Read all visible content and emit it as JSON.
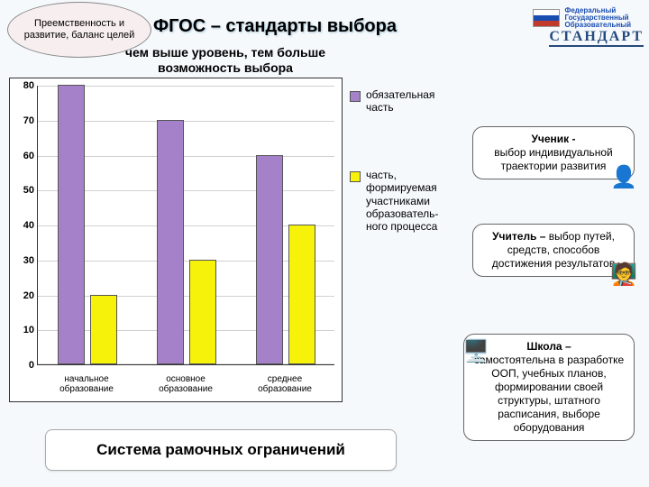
{
  "badge_text": "Преемственность и развитие, баланс целей",
  "title": "ФГОС – стандарты выбора",
  "stand_label": "СТАНДАРТ",
  "logo_text1": "Федеральный",
  "logo_text2": "Государственный",
  "logo_text3": "Образовательный",
  "subtitle": "чем выше уровень, тем больше возможность выбора",
  "chart": {
    "type": "bar",
    "ymin": 0,
    "ymax": 80,
    "yticks": [
      0,
      10,
      20,
      30,
      40,
      50,
      60,
      70,
      80
    ],
    "categories": [
      "начальное образование",
      "основное образование",
      "среднее образование"
    ],
    "series": [
      {
        "name": "обязательная часть",
        "color": "#a481c9",
        "values": [
          80,
          70,
          60
        ]
      },
      {
        "name": "часть, формируемая участниками образователь-ного процесса",
        "color": "#f7f20a",
        "values": [
          20,
          30,
          40
        ]
      }
    ],
    "grid_color": "#d0d0d0",
    "bg": "#ffffff"
  },
  "callouts": [
    {
      "title": "Ученик -",
      "body": "выбор индивидуальной траектории развития"
    },
    {
      "title": "Учитель –",
      "body": "выбор путей, средств, способов достижения результатов"
    },
    {
      "title": "Школа –",
      "body": "самостоятельна в разработке ООП, учебных планов, формировании своей структуры, штатного расписания, выборе оборудования"
    }
  ],
  "bottom_text": "Система рамочных ограничений"
}
